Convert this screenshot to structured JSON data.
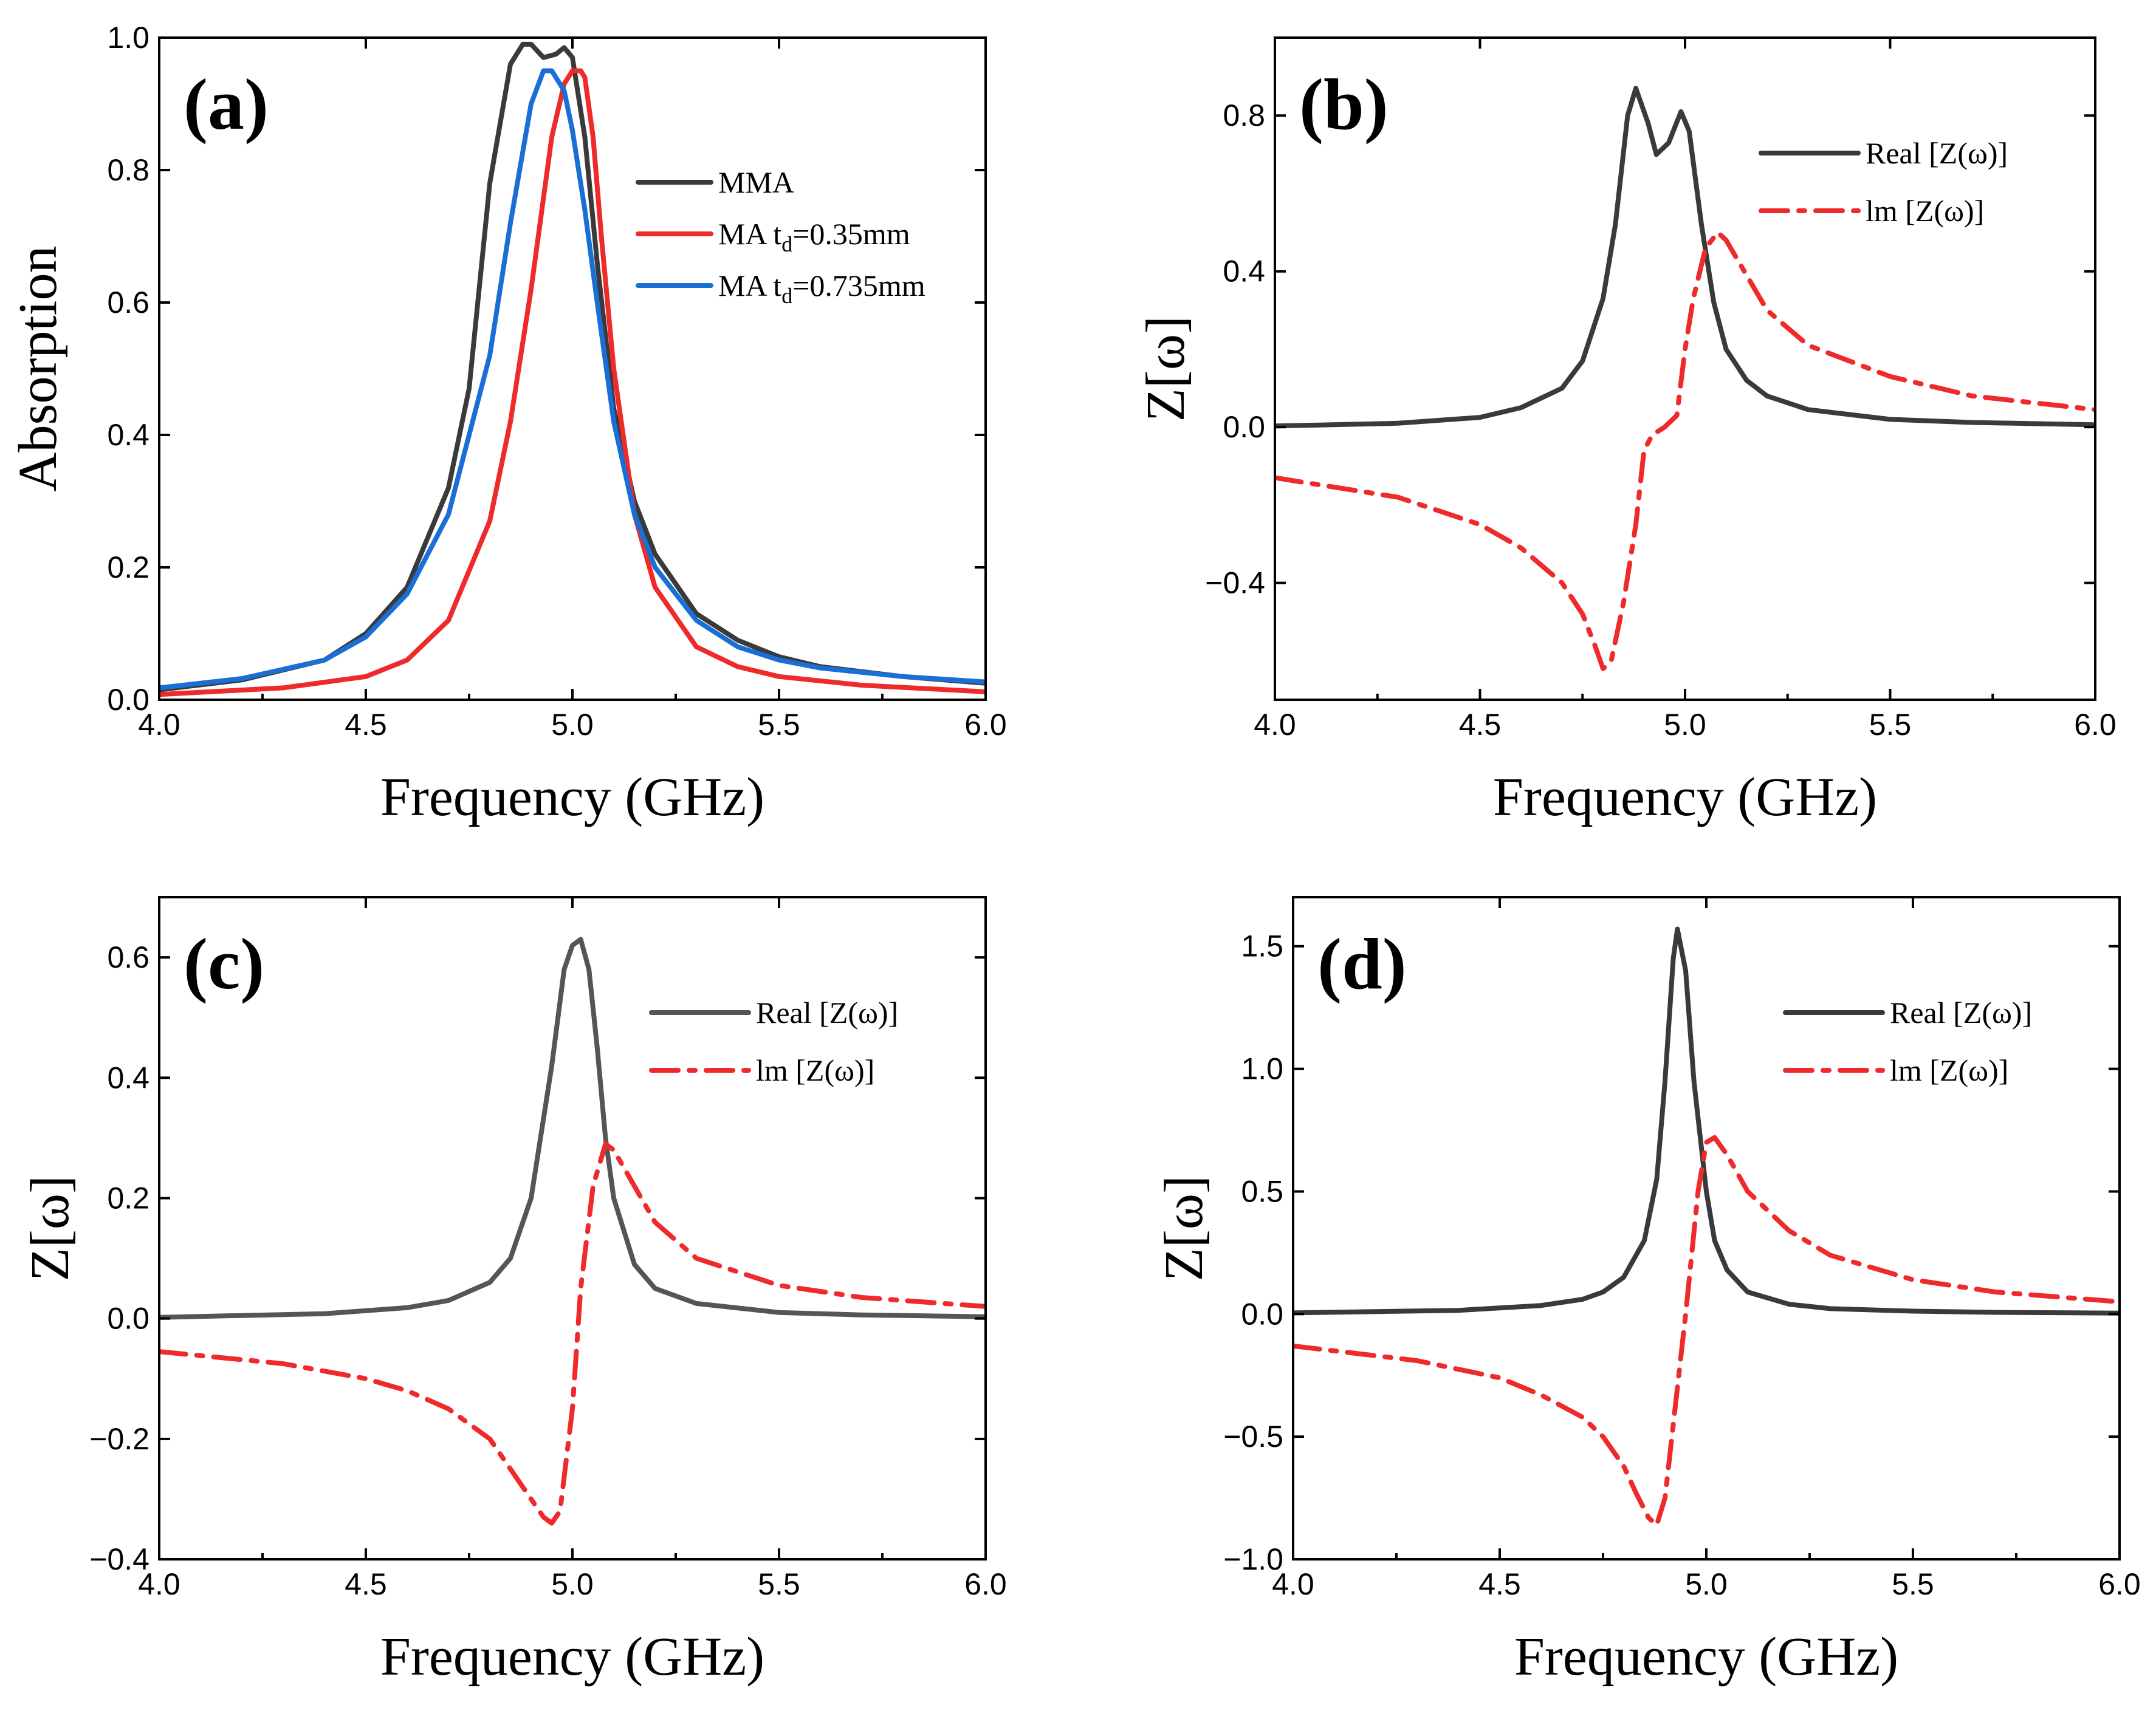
{
  "figure_title": "",
  "colors": {
    "black": "#3a3a3a",
    "red": "#ee2a2a",
    "blue": "#1a6fd6",
    "axis": "#000000"
  },
  "chart_data": [
    {
      "id": "a",
      "type": "line",
      "panel_label": "(a)",
      "xlabel": "Frequency (GHz)",
      "ylabel": "Absorption",
      "xlim": [
        4.0,
        6.0
      ],
      "ylim": [
        0.0,
        1.0
      ],
      "xticks": [
        "4.0",
        "4.5",
        "5.0",
        "5.5",
        "6.0"
      ],
      "xtick_values": [
        4.0,
        4.5,
        5.0,
        5.5,
        6.0
      ],
      "yticks": [
        "0.0",
        "0.2",
        "0.4",
        "0.6",
        "0.8",
        "1.0"
      ],
      "ytick_values": [
        0.0,
        0.2,
        0.4,
        0.6,
        0.8,
        1.0
      ],
      "legend_position": "top-right",
      "series": [
        {
          "name": "MMA",
          "legend_main": "MMA",
          "legend_sub": "",
          "legend_tail": "",
          "color": "#3a3a3a",
          "style": "solid",
          "x": [
            4.0,
            4.2,
            4.4,
            4.5,
            4.6,
            4.7,
            4.75,
            4.8,
            4.85,
            4.88,
            4.9,
            4.93,
            4.96,
            4.98,
            5.0,
            5.03,
            5.06,
            5.1,
            5.15,
            5.2,
            5.3,
            5.4,
            5.5,
            5.6,
            5.8,
            6.0
          ],
          "y": [
            0.015,
            0.03,
            0.06,
            0.1,
            0.17,
            0.32,
            0.47,
            0.78,
            0.96,
            0.99,
            0.99,
            0.97,
            0.975,
            0.985,
            0.97,
            0.85,
            0.66,
            0.44,
            0.3,
            0.22,
            0.13,
            0.09,
            0.065,
            0.05,
            0.035,
            0.025
          ]
        },
        {
          "name": "MA td=0.35mm",
          "legend_main": "MA t",
          "legend_sub": "d",
          "legend_tail": "=0.35mm",
          "color": "#ee2a2a",
          "style": "solid",
          "x": [
            4.0,
            4.3,
            4.5,
            4.6,
            4.7,
            4.8,
            4.85,
            4.9,
            4.95,
            4.98,
            5.0,
            5.02,
            5.03,
            5.05,
            5.07,
            5.1,
            5.15,
            5.2,
            5.3,
            5.4,
            5.5,
            5.7,
            6.0
          ],
          "y": [
            0.008,
            0.018,
            0.035,
            0.06,
            0.12,
            0.27,
            0.42,
            0.62,
            0.85,
            0.93,
            0.95,
            0.95,
            0.94,
            0.85,
            0.7,
            0.5,
            0.28,
            0.17,
            0.08,
            0.05,
            0.035,
            0.022,
            0.012
          ]
        },
        {
          "name": "MA td=0.735mm",
          "legend_main": "MA t",
          "legend_sub": "d",
          "legend_tail": "=0.735mm",
          "color": "#1a6fd6",
          "style": "solid",
          "x": [
            4.0,
            4.2,
            4.4,
            4.5,
            4.6,
            4.7,
            4.8,
            4.85,
            4.9,
            4.93,
            4.95,
            4.98,
            5.0,
            5.03,
            5.06,
            5.1,
            5.15,
            5.2,
            5.3,
            5.4,
            5.5,
            5.6,
            5.8,
            6.0
          ],
          "y": [
            0.018,
            0.032,
            0.06,
            0.095,
            0.16,
            0.28,
            0.52,
            0.72,
            0.9,
            0.95,
            0.95,
            0.92,
            0.86,
            0.74,
            0.6,
            0.42,
            0.28,
            0.2,
            0.12,
            0.08,
            0.06,
            0.048,
            0.035,
            0.027
          ]
        }
      ]
    },
    {
      "id": "b",
      "type": "line",
      "panel_label": "(b)",
      "xlabel": "Frequency (GHz)",
      "ylabel": "Z[ω]",
      "xlim": [
        4.0,
        6.0
      ],
      "ylim": [
        -0.7,
        1.0
      ],
      "xticks": [
        "4.0",
        "4.5",
        "5.0",
        "5.5",
        "6.0"
      ],
      "xtick_values": [
        4.0,
        4.5,
        5.0,
        5.5,
        6.0
      ],
      "yticks": [
        "−0.4",
        "0.0",
        "0.4",
        "0.8"
      ],
      "ytick_values": [
        -0.4,
        0.0,
        0.4,
        0.8
      ],
      "legend_position": "top-right",
      "series": [
        {
          "name": "Real [Z(ω)]",
          "legend_main": "Real [Z(ω)]",
          "legend_sub": "",
          "legend_tail": "",
          "color": "#3a3a3a",
          "style": "solid",
          "x": [
            4.0,
            4.3,
            4.5,
            4.6,
            4.7,
            4.75,
            4.8,
            4.83,
            4.86,
            4.88,
            4.91,
            4.93,
            4.96,
            4.99,
            5.01,
            5.04,
            5.07,
            5.1,
            5.15,
            5.2,
            5.3,
            5.5,
            5.7,
            6.0
          ],
          "y": [
            0.003,
            0.01,
            0.025,
            0.05,
            0.1,
            0.17,
            0.33,
            0.52,
            0.8,
            0.87,
            0.78,
            0.7,
            0.73,
            0.81,
            0.76,
            0.52,
            0.32,
            0.2,
            0.12,
            0.08,
            0.045,
            0.02,
            0.012,
            0.006
          ]
        },
        {
          "name": "Im [Z(ω)]",
          "legend_main": "lm [Z(ω)]",
          "legend_sub": "",
          "legend_tail": "",
          "color": "#ee2a2a",
          "style": "dashdot",
          "x": [
            4.0,
            4.3,
            4.5,
            4.6,
            4.7,
            4.75,
            4.78,
            4.8,
            4.82,
            4.85,
            4.88,
            4.9,
            4.92,
            4.95,
            4.98,
            5.0,
            5.02,
            5.05,
            5.08,
            5.1,
            5.2,
            5.3,
            5.5,
            5.7,
            6.0
          ],
          "y": [
            -0.13,
            -0.18,
            -0.25,
            -0.31,
            -0.4,
            -0.48,
            -0.56,
            -0.62,
            -0.6,
            -0.45,
            -0.25,
            -0.06,
            -0.02,
            0.0,
            0.03,
            0.2,
            0.33,
            0.46,
            0.5,
            0.48,
            0.3,
            0.21,
            0.13,
            0.08,
            0.045
          ]
        }
      ]
    },
    {
      "id": "c",
      "type": "line",
      "panel_label": "(c)",
      "xlabel": "Frequency (GHz)",
      "ylabel": "Z[ω]",
      "xlim": [
        4.0,
        6.0
      ],
      "ylim": [
        -0.4,
        0.7
      ],
      "xticks": [
        "4.0",
        "4.5",
        "5.0",
        "5.5",
        "6.0"
      ],
      "xtick_values": [
        4.0,
        4.5,
        5.0,
        5.5,
        6.0
      ],
      "yticks": [
        "−0.4",
        "−0.2",
        "0.0",
        "0.2",
        "0.4",
        "0.6"
      ],
      "ytick_values": [
        -0.4,
        -0.2,
        0.0,
        0.2,
        0.4,
        0.6
      ],
      "legend_position": "top-right",
      "series": [
        {
          "name": "Real [Z(ω)]",
          "legend_main": "Real [Z(ω)]",
          "legend_sub": "",
          "legend_tail": "",
          "color": "#555555",
          "style": "solid",
          "x": [
            4.0,
            4.4,
            4.6,
            4.7,
            4.8,
            4.85,
            4.9,
            4.95,
            4.98,
            5.0,
            5.02,
            5.04,
            5.06,
            5.08,
            5.1,
            5.15,
            5.2,
            5.3,
            5.5,
            5.7,
            6.0
          ],
          "y": [
            0.002,
            0.008,
            0.018,
            0.03,
            0.06,
            0.1,
            0.2,
            0.42,
            0.58,
            0.62,
            0.63,
            0.58,
            0.45,
            0.3,
            0.2,
            0.09,
            0.05,
            0.025,
            0.01,
            0.006,
            0.003
          ]
        },
        {
          "name": "Im [Z(ω)]",
          "legend_main": "lm [Z(ω)]",
          "legend_sub": "",
          "legend_tail": "",
          "color": "#ee2a2a",
          "style": "dashdot",
          "x": [
            4.0,
            4.3,
            4.5,
            4.6,
            4.7,
            4.8,
            4.85,
            4.9,
            4.93,
            4.95,
            4.97,
            5.0,
            5.02,
            5.05,
            5.08,
            5.1,
            5.15,
            5.2,
            5.3,
            5.5,
            5.7,
            6.0
          ],
          "y": [
            -0.055,
            -0.075,
            -0.1,
            -0.12,
            -0.15,
            -0.2,
            -0.25,
            -0.3,
            -0.33,
            -0.34,
            -0.32,
            -0.15,
            0.05,
            0.22,
            0.29,
            0.28,
            0.22,
            0.16,
            0.1,
            0.055,
            0.035,
            0.02
          ]
        }
      ]
    },
    {
      "id": "d",
      "type": "line",
      "panel_label": "(d)",
      "xlabel": "Frequency (GHz)",
      "ylabel": "Z[ω]",
      "xlim": [
        4.0,
        6.0
      ],
      "ylim": [
        -1.0,
        1.7
      ],
      "xticks": [
        "4.0",
        "4.5",
        "5.0",
        "5.5",
        "6.0"
      ],
      "xtick_values": [
        4.0,
        4.5,
        5.0,
        5.5,
        6.0
      ],
      "yticks": [
        "−1.0",
        "−0.5",
        "0.0",
        "0.5",
        "1.0",
        "1.5"
      ],
      "ytick_values": [
        -1.0,
        -0.5,
        0.0,
        0.5,
        1.0,
        1.5
      ],
      "legend_position": "top-right",
      "series": [
        {
          "name": "Real [Z(ω)]",
          "legend_main": "Real [Z(ω)]",
          "legend_sub": "",
          "legend_tail": "",
          "color": "#3a3a3a",
          "style": "solid",
          "x": [
            4.0,
            4.4,
            4.6,
            4.7,
            4.75,
            4.8,
            4.85,
            4.88,
            4.9,
            4.92,
            4.93,
            4.95,
            4.97,
            5.0,
            5.02,
            5.05,
            5.1,
            5.2,
            5.3,
            5.5,
            5.7,
            6.0
          ],
          "y": [
            0.005,
            0.015,
            0.035,
            0.06,
            0.09,
            0.15,
            0.3,
            0.55,
            0.95,
            1.45,
            1.57,
            1.4,
            0.95,
            0.5,
            0.3,
            0.18,
            0.09,
            0.04,
            0.022,
            0.012,
            0.007,
            0.004
          ]
        },
        {
          "name": "Im [Z(ω)]",
          "legend_main": "lm [Z(ω)]",
          "legend_sub": "",
          "legend_tail": "",
          "color": "#ee2a2a",
          "style": "dashdot",
          "x": [
            4.0,
            4.3,
            4.5,
            4.6,
            4.7,
            4.75,
            4.8,
            4.83,
            4.86,
            4.88,
            4.9,
            4.92,
            4.95,
            4.98,
            5.0,
            5.02,
            5.05,
            5.1,
            5.2,
            5.3,
            5.5,
            5.7,
            6.0
          ],
          "y": [
            -0.13,
            -0.19,
            -0.26,
            -0.33,
            -0.42,
            -0.5,
            -0.62,
            -0.73,
            -0.83,
            -0.86,
            -0.75,
            -0.45,
            0.0,
            0.5,
            0.7,
            0.72,
            0.65,
            0.5,
            0.34,
            0.24,
            0.14,
            0.09,
            0.05
          ]
        }
      ]
    }
  ]
}
